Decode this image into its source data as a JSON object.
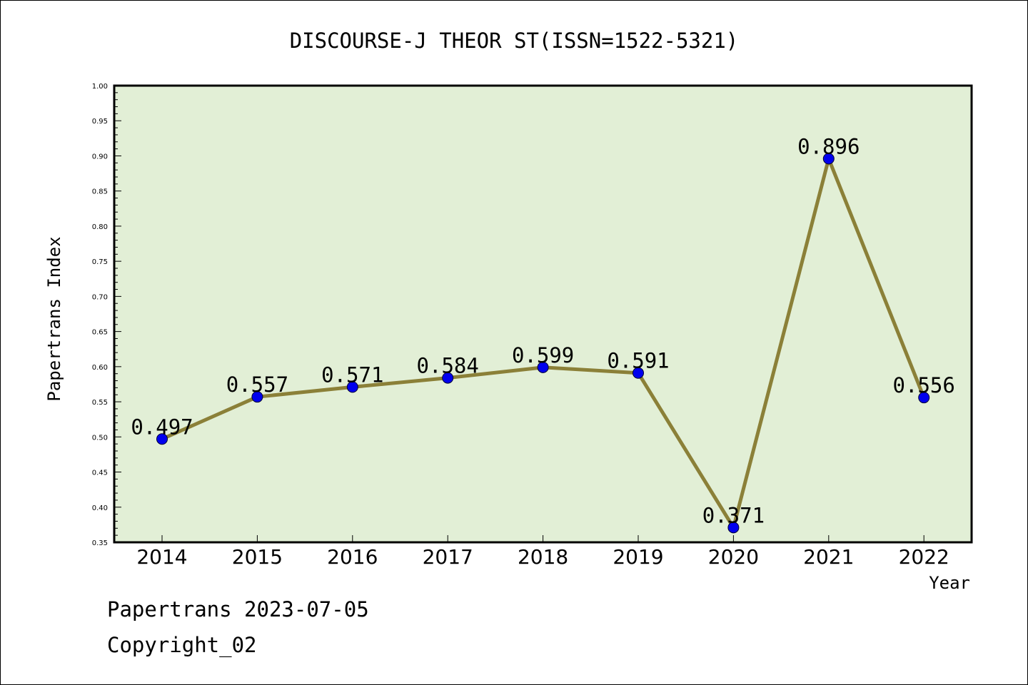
{
  "chart_data": {
    "type": "line",
    "title": "DISCOURSE-J THEOR ST(ISSN=1522-5321)",
    "xlabel": "Year",
    "ylabel": "Papertrans Index",
    "x": [
      "2014",
      "2015",
      "2016",
      "2017",
      "2018",
      "2019",
      "2020",
      "2021",
      "2022"
    ],
    "series": [
      {
        "values": [
          0.497,
          0.557,
          0.571,
          0.584,
          0.599,
          0.591,
          0.371,
          0.896,
          0.556
        ]
      }
    ],
    "data_labels": [
      "0.497",
      "0.557",
      "0.571",
      "0.584",
      "0.599",
      "0.591",
      "0.371",
      "0.896",
      "0.556"
    ],
    "ylim": [
      0.35,
      1.0
    ],
    "yticks": [
      "0.35",
      "0.40",
      "0.45",
      "0.50",
      "0.55",
      "0.60",
      "0.65",
      "0.70",
      "0.75",
      "0.80",
      "0.85",
      "0.90",
      "0.95",
      "1.00"
    ],
    "grid": false,
    "legend": "none",
    "colors": {
      "plot_background": "#e2efd6",
      "line": "#8b8038",
      "marker": "#0000ee",
      "axes": "#000000"
    }
  },
  "footer": {
    "line1": "Papertrans 2023-07-05",
    "line2": "Copyright_02"
  }
}
